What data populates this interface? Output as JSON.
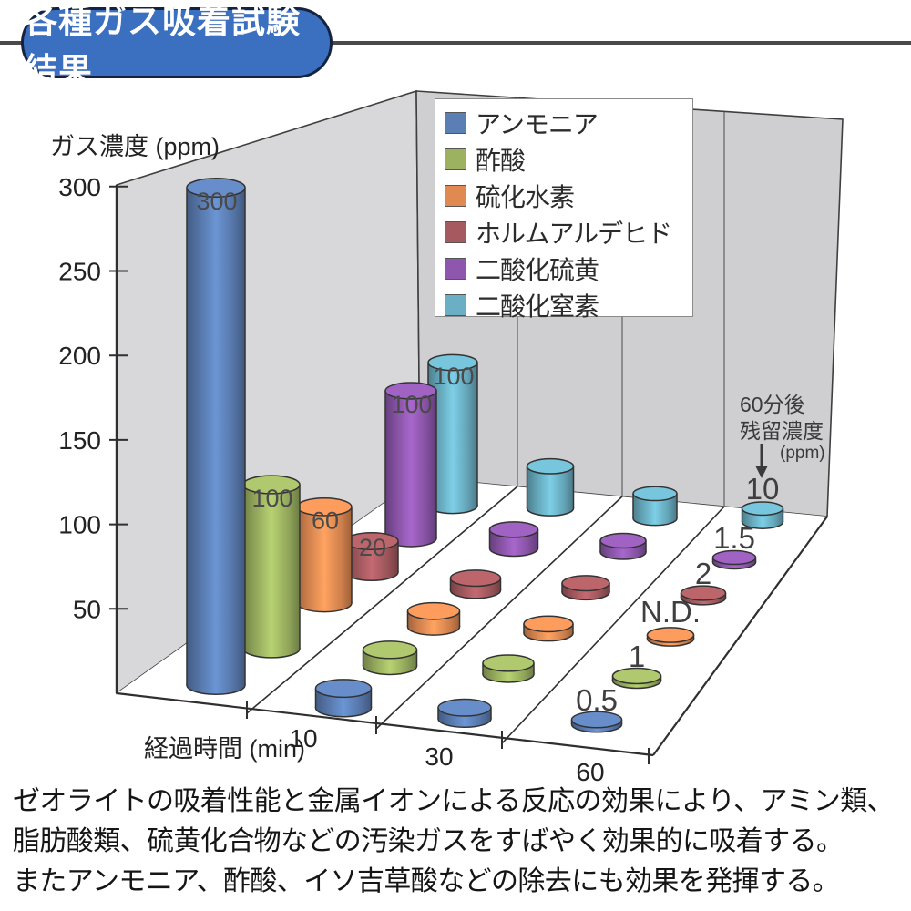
{
  "title": {
    "text": "各種ガス吸着試験結果"
  },
  "annotation": {
    "line1": "60分後",
    "line2": "残留濃度",
    "line3": "(ppm)"
  },
  "bottom_text": {
    "lines": [
      "ゼオライトの吸着性能と金属イオンによる反応の効果により、アミン類、",
      "脂肪酸類、硫黄化合物などの汚染ガスをすばやく効果的に吸着する。",
      "またアンモニア、酢酸、イソ吉草酸などの除去にも効果を発揮する。"
    ]
  },
  "chart_data": {
    "type": "bar",
    "subtype": "3d-cylinder",
    "title": "各種ガス吸着試験結果",
    "ylabel": "ガス濃度 (ppm)",
    "xlabel": "経過時間 (min)",
    "x_times_min": [
      0,
      10,
      30,
      60
    ],
    "x_tick_labels": [
      "10",
      "30",
      "60"
    ],
    "yticks": [
      50,
      100,
      150,
      200,
      250,
      300
    ],
    "ylim": [
      0,
      300
    ],
    "legend_position": "upper center on back wall",
    "annotation": "60分後残留濃度(ppm)",
    "unlabeled_values_estimated": true,
    "series": [
      {
        "name": "アンモニア",
        "color": "#5b7eb4",
        "values": [
          300,
          12,
          7,
          0.5
        ],
        "labels": [
          "300",
          "",
          "",
          "0.5"
        ]
      },
      {
        "name": "酢酸",
        "color": "#9cb261",
        "values": [
          100,
          10,
          7,
          1
        ],
        "labels": [
          "100",
          "",
          "",
          "1"
        ]
      },
      {
        "name": "硫化水素",
        "color": "#e08a52",
        "values": [
          60,
          10,
          6,
          0
        ],
        "labels": [
          "60",
          "",
          "",
          "N.D."
        ]
      },
      {
        "name": "ホルムアルデヒド",
        "color": "#a65a60",
        "values": [
          20,
          8,
          6,
          2
        ],
        "labels": [
          "20",
          "",
          "",
          "2"
        ]
      },
      {
        "name": "二酸化硫黄",
        "color": "#8e57ad",
        "values": [
          100,
          13,
          8,
          1.5
        ],
        "labels": [
          "100",
          "",
          "",
          "1.5"
        ]
      },
      {
        "name": "二酸化窒素",
        "color": "#6aafc4",
        "values": [
          100,
          30,
          18,
          10
        ],
        "labels": [
          "100",
          "",
          "",
          "10"
        ]
      }
    ]
  }
}
